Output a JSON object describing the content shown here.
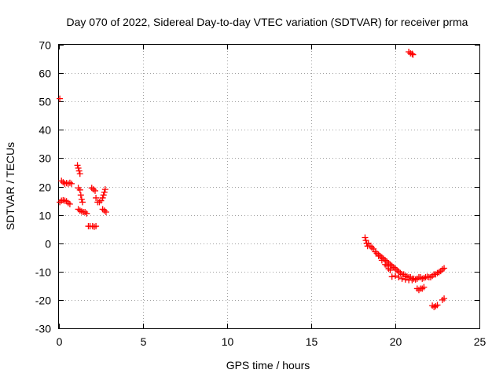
{
  "chart_data": {
    "type": "scatter",
    "title": "Day 070 of 2022, Sidereal Day-to-day VTEC variation (SDTVAR) for receiver prma",
    "xlabel": "GPS time / hours",
    "ylabel": "SDTVAR / TECUs",
    "xlim": [
      0,
      25
    ],
    "ylim": [
      -30,
      70
    ],
    "xticks": [
      0,
      5,
      10,
      15,
      20,
      25
    ],
    "yticks": [
      -30,
      -20,
      -10,
      0,
      10,
      20,
      30,
      40,
      50,
      60,
      70
    ],
    "grid": true,
    "marker": "+",
    "series": [
      {
        "name": "SDTVAR",
        "color": "#ff0000",
        "points": [
          [
            0.05,
            51
          ],
          [
            0.05,
            14.5
          ],
          [
            0.15,
            15
          ],
          [
            0.25,
            15.2
          ],
          [
            0.35,
            15
          ],
          [
            0.45,
            14.8
          ],
          [
            0.55,
            14.2
          ],
          [
            0.65,
            13.8
          ],
          [
            0.15,
            22
          ],
          [
            0.25,
            21.5
          ],
          [
            0.35,
            21
          ],
          [
            0.45,
            21.2
          ],
          [
            0.55,
            21
          ],
          [
            0.65,
            21.3
          ],
          [
            0.75,
            21
          ],
          [
            1.1,
            27.5
          ],
          [
            1.15,
            26.5
          ],
          [
            1.2,
            25.5
          ],
          [
            1.25,
            24.5
          ],
          [
            1.15,
            19.5
          ],
          [
            1.25,
            18.8
          ],
          [
            1.3,
            17
          ],
          [
            1.35,
            15.5
          ],
          [
            1.4,
            14.5
          ],
          [
            1.15,
            12
          ],
          [
            1.25,
            11.5
          ],
          [
            1.35,
            11.2
          ],
          [
            1.45,
            11
          ],
          [
            1.55,
            11
          ],
          [
            1.65,
            10.5
          ],
          [
            1.75,
            6
          ],
          [
            1.85,
            6
          ],
          [
            2.0,
            6
          ],
          [
            2.1,
            5.8
          ],
          [
            2.2,
            6
          ],
          [
            1.95,
            19.5
          ],
          [
            2.05,
            19
          ],
          [
            2.15,
            18.5
          ],
          [
            2.2,
            16
          ],
          [
            2.3,
            14.5
          ],
          [
            2.4,
            14.5
          ],
          [
            2.5,
            15
          ],
          [
            2.6,
            16
          ],
          [
            2.65,
            17
          ],
          [
            2.7,
            18
          ],
          [
            2.75,
            19
          ],
          [
            2.6,
            12
          ],
          [
            2.7,
            11.5
          ],
          [
            2.8,
            11
          ],
          [
            18.2,
            2
          ],
          [
            18.25,
            1
          ],
          [
            18.3,
            0
          ],
          [
            18.35,
            -1
          ],
          [
            18.4,
            0
          ],
          [
            18.5,
            -1
          ],
          [
            18.6,
            -1.5
          ],
          [
            18.7,
            -2
          ],
          [
            18.8,
            -3
          ],
          [
            18.9,
            -3.5
          ],
          [
            19.0,
            -4
          ],
          [
            19.1,
            -4.5
          ],
          [
            19.2,
            -5
          ],
          [
            19.3,
            -5.5
          ],
          [
            19.4,
            -6
          ],
          [
            19.5,
            -6.5
          ],
          [
            19.6,
            -7
          ],
          [
            19.7,
            -7.5
          ],
          [
            19.8,
            -8
          ],
          [
            19.9,
            -8.5
          ],
          [
            20.0,
            -9
          ],
          [
            20.1,
            -9.5
          ],
          [
            20.2,
            -10
          ],
          [
            20.3,
            -10.5
          ],
          [
            20.4,
            -11
          ],
          [
            20.5,
            -11
          ],
          [
            20.6,
            -11.5
          ],
          [
            20.7,
            -11.8
          ],
          [
            20.8,
            -12
          ],
          [
            20.9,
            -12
          ],
          [
            21.0,
            -12.5
          ],
          [
            21.1,
            -12.5
          ],
          [
            21.2,
            -12.8
          ],
          [
            21.3,
            -12.5
          ],
          [
            21.4,
            -12
          ],
          [
            21.5,
            -12
          ],
          [
            21.6,
            -12.5
          ],
          [
            21.7,
            -12.3
          ],
          [
            21.8,
            -12
          ],
          [
            21.9,
            -11.8
          ],
          [
            22.0,
            -12
          ],
          [
            22.1,
            -12
          ],
          [
            22.2,
            -11.5
          ],
          [
            22.3,
            -11
          ],
          [
            22.4,
            -11
          ],
          [
            22.5,
            -10.5
          ],
          [
            22.6,
            -10.2
          ],
          [
            22.7,
            -9.8
          ],
          [
            22.8,
            -9.2
          ],
          [
            22.9,
            -8.8
          ],
          [
            19.0,
            -4.5
          ],
          [
            19.2,
            -6
          ],
          [
            19.4,
            -7.5
          ],
          [
            19.5,
            -8
          ],
          [
            19.6,
            -9
          ],
          [
            19.7,
            -9.5
          ],
          [
            19.8,
            -11.8
          ],
          [
            20.0,
            -11.5
          ],
          [
            20.2,
            -12
          ],
          [
            20.4,
            -12.5
          ],
          [
            20.6,
            -12.8
          ],
          [
            20.8,
            -13
          ],
          [
            21.0,
            -13
          ],
          [
            21.3,
            -16
          ],
          [
            21.4,
            -16.5
          ],
          [
            21.5,
            -16
          ],
          [
            21.6,
            -16
          ],
          [
            21.7,
            -15.5
          ],
          [
            22.2,
            -22
          ],
          [
            22.3,
            -22.5
          ],
          [
            22.4,
            -22.2
          ],
          [
            22.5,
            -21.8
          ],
          [
            22.8,
            -20
          ],
          [
            22.9,
            -19.5
          ],
          [
            20.8,
            67.5
          ],
          [
            20.9,
            67
          ],
          [
            21.0,
            66.8
          ],
          [
            21.05,
            66.5
          ]
        ]
      }
    ]
  }
}
